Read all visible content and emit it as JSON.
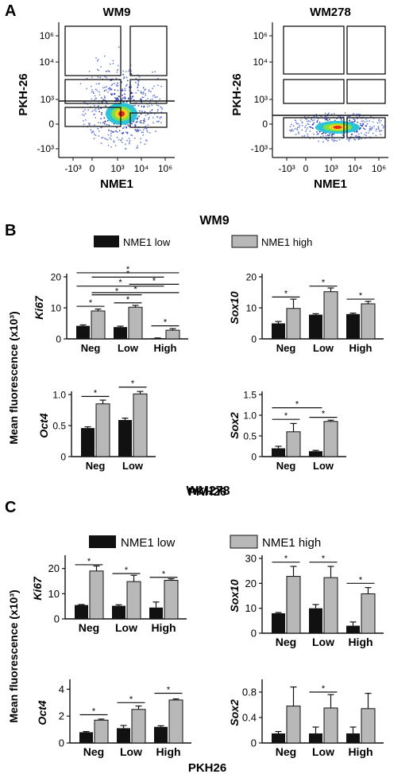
{
  "panels": {
    "A": {
      "letter": "A",
      "plots": [
        {
          "title": "WM9",
          "ylabel": "PKH-26",
          "xlabel": "NME1",
          "xticks": [
            "-10³",
            "0",
            "10³",
            "10⁴",
            "10⁶"
          ],
          "yticks": [
            "10⁶",
            "10⁴",
            "10³",
            "0",
            "-10³"
          ]
        },
        {
          "title": "WM278",
          "ylabel": "PKH-26",
          "xlabel": "NME1",
          "xticks": [
            "-10³",
            "0",
            "10³",
            "10⁴",
            "10⁶"
          ],
          "yticks": [
            "10⁶",
            "10⁴",
            "10³",
            "0",
            "-10³"
          ]
        }
      ]
    },
    "B": {
      "letter": "B",
      "title": "WM9",
      "xlabel": "PKH26",
      "ylabel": "Mean fluorescence (x10³)"
    },
    "C": {
      "letter": "C",
      "title": "WM278",
      "xlabel": "PKH26",
      "ylabel": "Mean fluorescence (x10³)"
    },
    "legend": {
      "low": "NME1 low",
      "high": "NME1 high",
      "low_color": "#111111",
      "high_color": "#b8b8b8"
    }
  },
  "chart_data": [
    {
      "panel": "B",
      "type": "bar",
      "gene": "Ki67",
      "categories": [
        "Neg",
        "Low",
        "High"
      ],
      "ylim": [
        0,
        20
      ],
      "yticks": [
        "0",
        "10",
        "20"
      ],
      "series": [
        {
          "name": "NME1 low",
          "values": [
            4.2,
            3.8,
            0.2
          ],
          "err": [
            0.3,
            0.3,
            0.1
          ]
        },
        {
          "name": "NME1 high",
          "values": [
            9.0,
            10.2,
            2.8
          ],
          "err": [
            0.6,
            0.6,
            0.5
          ]
        }
      ]
    },
    {
      "panel": "B",
      "type": "bar",
      "gene": "Sox10",
      "categories": [
        "Neg",
        "Low",
        "High"
      ],
      "ylim": [
        0,
        20
      ],
      "yticks": [
        "0",
        "10",
        "20"
      ],
      "series": [
        {
          "name": "NME1 low",
          "values": [
            5.0,
            7.8,
            8.0
          ],
          "err": [
            0.6,
            0.3,
            0.3
          ]
        },
        {
          "name": "NME1 high",
          "values": [
            9.8,
            15.2,
            11.3
          ],
          "err": [
            3.0,
            1.2,
            0.8
          ]
        }
      ]
    },
    {
      "panel": "B",
      "type": "bar",
      "gene": "Oct4",
      "categories": [
        "Neg",
        "Low"
      ],
      "ylim": [
        0,
        1.0
      ],
      "yticks": [
        "0",
        "0.5",
        "1.0"
      ],
      "series": [
        {
          "name": "NME1 low",
          "values": [
            0.46,
            0.59
          ],
          "err": [
            0.02,
            0.03
          ]
        },
        {
          "name": "NME1 high",
          "values": [
            0.85,
            1.01
          ],
          "err": [
            0.06,
            0.04
          ]
        }
      ]
    },
    {
      "panel": "B",
      "type": "bar",
      "gene": "Sox2",
      "categories": [
        "Neg",
        "Low"
      ],
      "ylim": [
        0,
        1.5
      ],
      "yticks": [
        "0",
        "0.5",
        "1.0",
        "1.5"
      ],
      "series": [
        {
          "name": "NME1 low",
          "values": [
            0.2,
            0.13
          ],
          "err": [
            0.05,
            0.02
          ]
        },
        {
          "name": "NME1 high",
          "values": [
            0.6,
            0.85
          ],
          "err": [
            0.2,
            0.03
          ]
        }
      ]
    },
    {
      "panel": "C",
      "type": "bar",
      "gene": "Ki67",
      "categories": [
        "Neg",
        "Low",
        "High"
      ],
      "ylim": [
        0,
        24
      ],
      "yticks": [
        "0",
        "10",
        "20"
      ],
      "series": [
        {
          "name": "NME1 low",
          "values": [
            5.5,
            5.2,
            4.5
          ],
          "err": [
            0.2,
            0.4,
            2.2
          ]
        },
        {
          "name": "NME1 high",
          "values": [
            19.0,
            14.8,
            15.3
          ],
          "err": [
            2.0,
            2.5,
            0.6
          ]
        }
      ]
    },
    {
      "panel": "C",
      "type": "bar",
      "gene": "Sox10",
      "categories": [
        "Neg",
        "Low",
        "High"
      ],
      "ylim": [
        0,
        30
      ],
      "yticks": [
        "0",
        "10",
        "20",
        "30"
      ],
      "series": [
        {
          "name": "NME1 low",
          "values": [
            8.0,
            10.0,
            3.0
          ],
          "err": [
            0.3,
            1.5,
            1.5
          ]
        },
        {
          "name": "NME1 high",
          "values": [
            22.8,
            22.3,
            15.8
          ],
          "err": [
            4.0,
            4.5,
            2.5
          ]
        }
      ]
    },
    {
      "panel": "C",
      "type": "bar",
      "gene": "Oct4",
      "categories": [
        "Neg",
        "Low",
        "High"
      ],
      "ylim": [
        0,
        4.5
      ],
      "yticks": [
        "0",
        "2",
        "4"
      ],
      "series": [
        {
          "name": "NME1 low",
          "values": [
            0.8,
            1.1,
            1.2
          ],
          "err": [
            0.05,
            0.2,
            0.08
          ]
        },
        {
          "name": "NME1 high",
          "values": [
            1.7,
            2.5,
            3.2
          ],
          "err": [
            0.08,
            0.25,
            0.08
          ]
        }
      ]
    },
    {
      "panel": "C",
      "type": "bar",
      "gene": "Sox2",
      "categories": [
        "Neg",
        "Low",
        "High"
      ],
      "ylim": [
        0,
        0.95
      ],
      "yticks": [
        "0",
        "0.4",
        "0.8"
      ],
      "series": [
        {
          "name": "NME1 low",
          "values": [
            0.15,
            0.15,
            0.15
          ],
          "err": [
            0.03,
            0.1,
            0.1
          ]
        },
        {
          "name": "NME1 high",
          "values": [
            0.58,
            0.55,
            0.54
          ],
          "err": [
            0.3,
            0.21,
            0.24
          ]
        }
      ]
    }
  ]
}
